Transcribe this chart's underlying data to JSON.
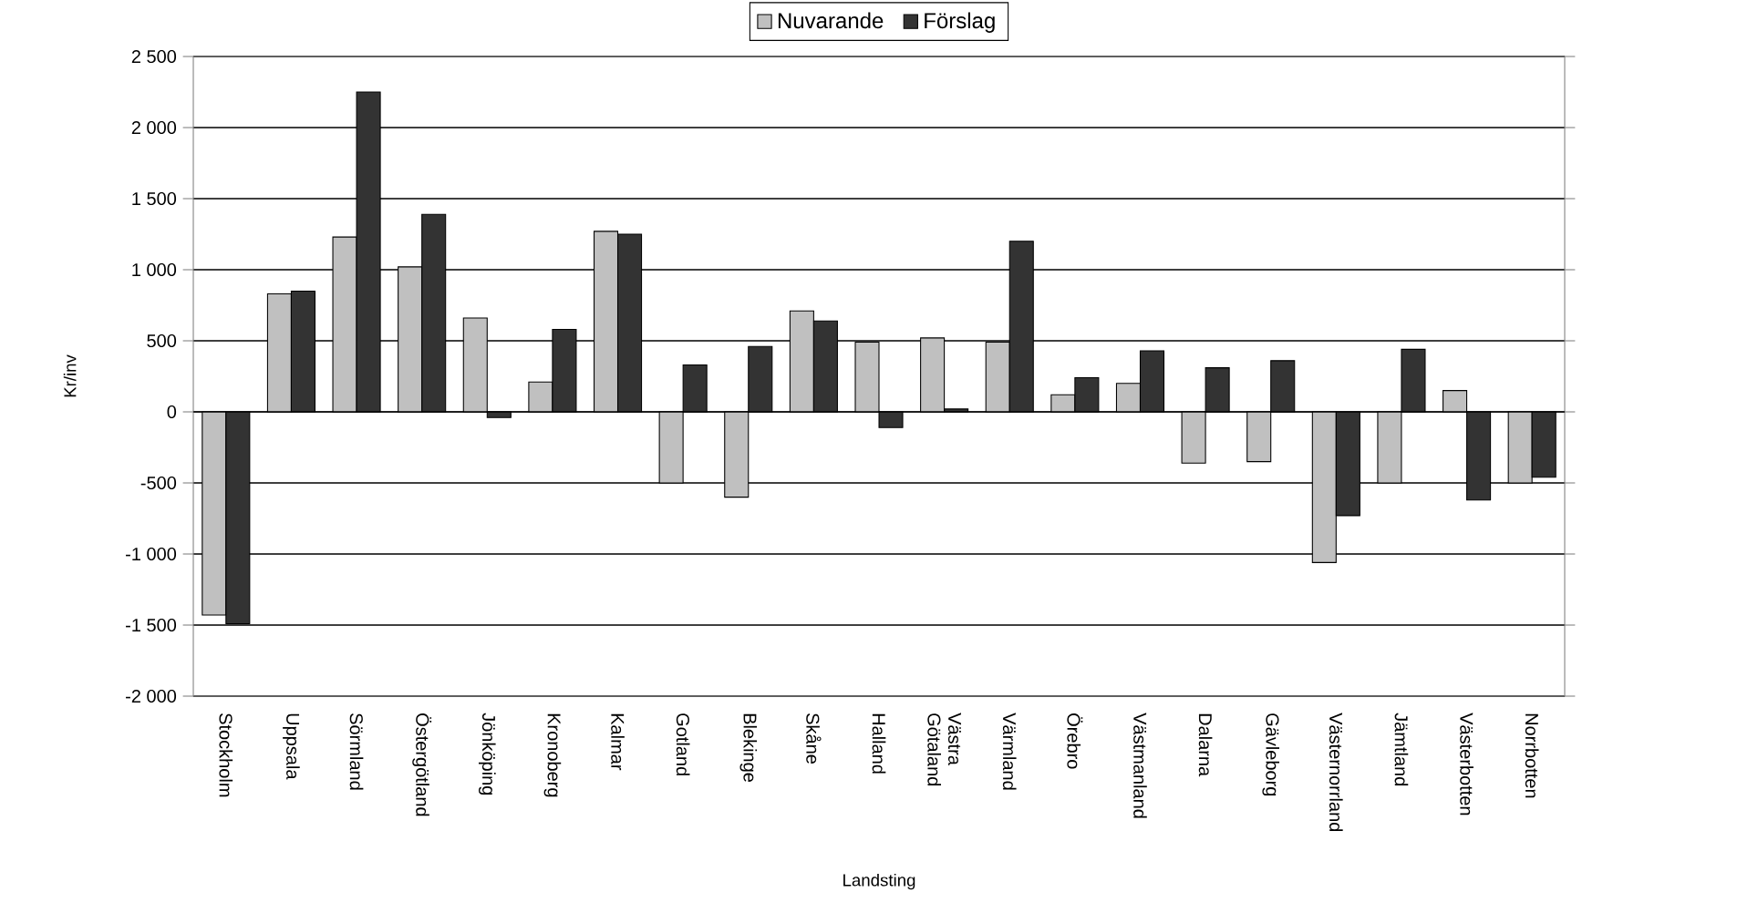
{
  "chart_data": {
    "type": "bar",
    "xlabel": "Landsting",
    "ylabel": "Kr/inv",
    "categories": [
      "Stockholm",
      "Uppsala",
      "Sörmland",
      "Östergötland",
      "Jönköping",
      "Kronoberg",
      "Kalmar",
      "Gotland",
      "Blekinge",
      "Skåne",
      "Halland",
      "Västra Götaland",
      "Värmland",
      "Örebro",
      "Västmanland",
      "Dalarna",
      "Gävleborg",
      "Västernorrland",
      "Jämtland",
      "Västerbotten",
      "Norrbotten"
    ],
    "series": [
      {
        "name": "Nuvarande",
        "color": "#c0c0c0",
        "values": [
          -1430,
          830,
          1230,
          1020,
          660,
          210,
          1270,
          -500,
          -600,
          710,
          490,
          520,
          490,
          120,
          200,
          -360,
          -350,
          -1060,
          -500,
          150,
          -500
        ]
      },
      {
        "name": "Förslag",
        "color": "#333333",
        "values": [
          -1490,
          850,
          2250,
          1390,
          -40,
          580,
          1250,
          330,
          460,
          640,
          -110,
          20,
          1200,
          240,
          430,
          310,
          360,
          -730,
          440,
          -620,
          -460
        ]
      }
    ],
    "ylim": [
      -2000,
      2500
    ],
    "yticks": [
      {
        "value": -2000,
        "label": "-2 000"
      },
      {
        "value": -1500,
        "label": "-1 500"
      },
      {
        "value": -1000,
        "label": "-1 000"
      },
      {
        "value": -500,
        "label": "-500"
      },
      0,
      {
        "value": 500,
        "label": "500"
      },
      {
        "value": 1000,
        "label": "1 000"
      },
      {
        "value": 1500,
        "label": "1 500"
      },
      {
        "value": 2000,
        "label": "2 000"
      },
      {
        "value": 2500,
        "label": "2 500"
      }
    ],
    "grid": "y",
    "legend": "top"
  }
}
